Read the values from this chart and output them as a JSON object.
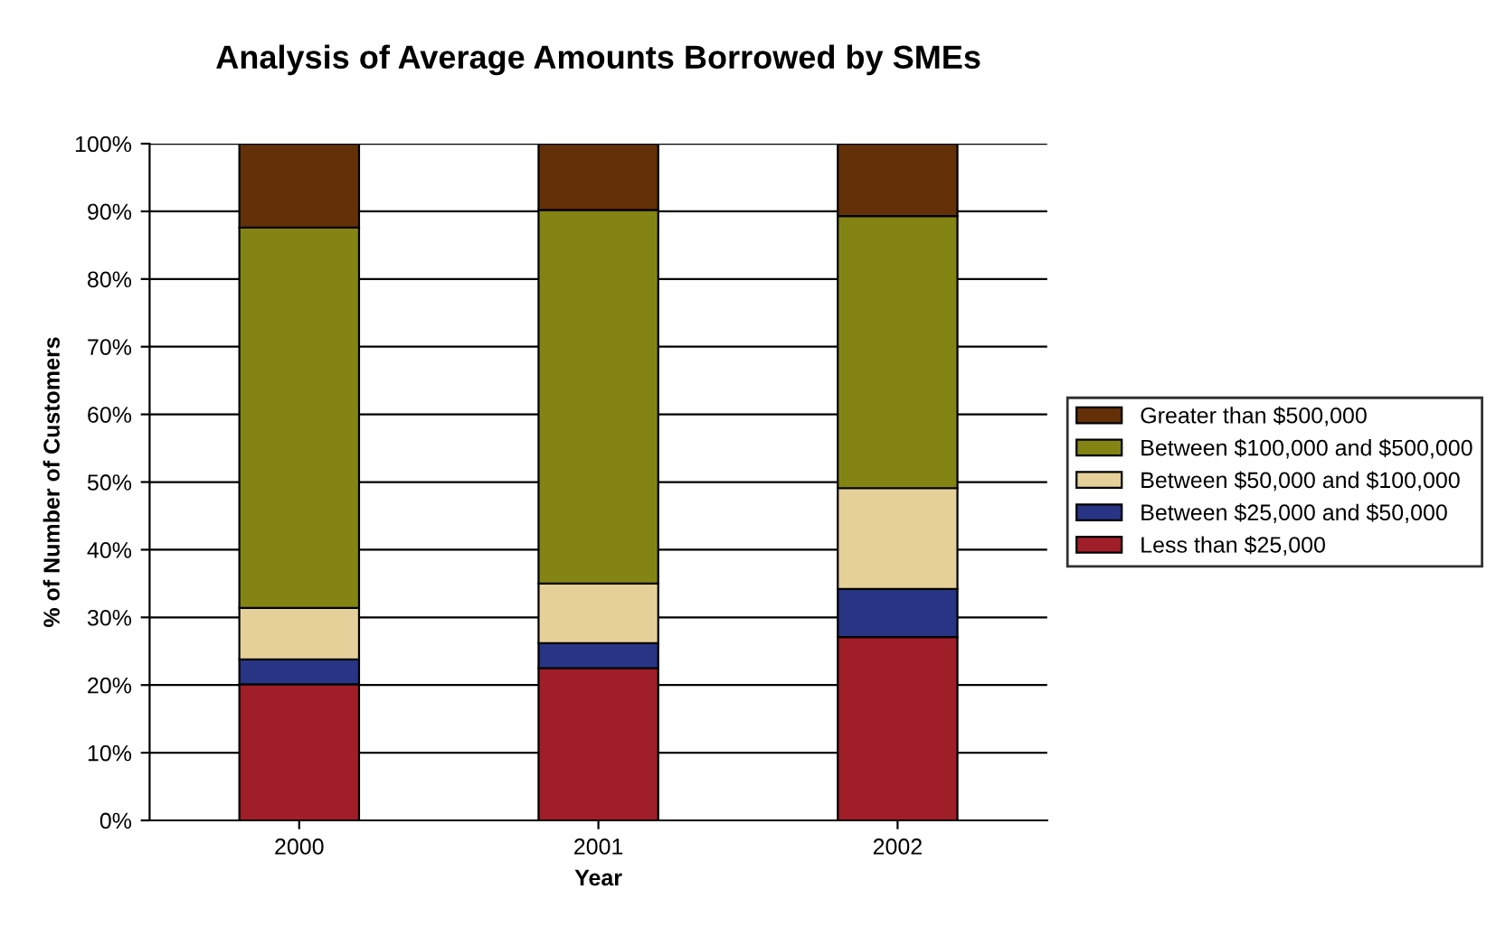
{
  "chart_data": {
    "type": "bar",
    "stacked": true,
    "title": "Analysis of Average Amounts Borrowed by SMEs",
    "xlabel": "Year",
    "ylabel": "% of Number of Customers",
    "categories": [
      "2000",
      "2001",
      "2002"
    ],
    "series": [
      {
        "name": "Less than $25,000",
        "color": "#a01e28",
        "values": [
          20.1,
          22.5,
          27.1
        ]
      },
      {
        "name": "Between $25,000 and $50,000",
        "color": "#283484",
        "values": [
          3.7,
          3.7,
          7.1
        ]
      },
      {
        "name": "Between $50,000 and $100,000",
        "color": "#e6d09a",
        "values": [
          7.6,
          8.8,
          14.9
        ]
      },
      {
        "name": "Between $100,000 and $500,000",
        "color": "#848414",
        "values": [
          56.2,
          55.2,
          40.2
        ]
      },
      {
        "name": "Greater than $500,000",
        "color": "#643008",
        "values": [
          12.4,
          9.8,
          10.7
        ]
      }
    ],
    "ylim": [
      0,
      100
    ],
    "yticks": [
      {
        "value": 0,
        "label": "0%"
      },
      {
        "value": 10,
        "label": "10%"
      },
      {
        "value": 20,
        "label": "20%"
      },
      {
        "value": 30,
        "label": "30%"
      },
      {
        "value": 40,
        "label": "40%"
      },
      {
        "value": 50,
        "label": "50%"
      },
      {
        "value": 60,
        "label": "60%"
      },
      {
        "value": 70,
        "label": "70%"
      },
      {
        "value": 80,
        "label": "80%"
      },
      {
        "value": 90,
        "label": "90%"
      },
      {
        "value": 100,
        "label": "100%"
      }
    ],
    "grid": "y",
    "legend": "right"
  }
}
